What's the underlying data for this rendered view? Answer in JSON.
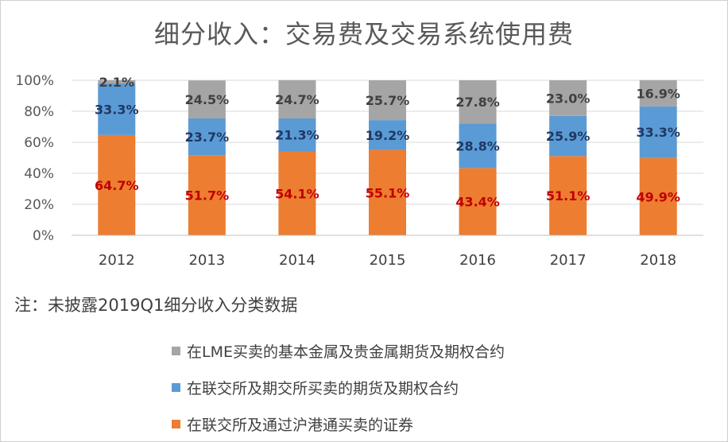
{
  "title": "细分收入：交易费及交易系统使用费",
  "note": "注：未披露2019Q1细分收入分类数据",
  "colors": {
    "orange": "#ED7D31",
    "blue": "#5B9BD5",
    "gray": "#A5A5A5",
    "orange_label": "#C00000",
    "blue_label": "#1F3864",
    "gray_label": "#404040"
  },
  "chart_data": {
    "type": "bar",
    "stacked": true,
    "percent": true,
    "categories": [
      "2012",
      "2013",
      "2014",
      "2015",
      "2016",
      "2017",
      "2018"
    ],
    "y_ticks": [
      "0%",
      "20%",
      "40%",
      "60%",
      "80%",
      "100%"
    ],
    "ylim": [
      0,
      100
    ],
    "grid": true,
    "legend_position": "bottom",
    "series": [
      {
        "name": "在联交所及通过沪港通买卖的证券",
        "color": "#ED7D31",
        "values": [
          64.7,
          51.7,
          54.1,
          55.1,
          43.4,
          51.1,
          49.9
        ],
        "labels": [
          "64.7%",
          "51.7%",
          "54.1%",
          "55.1%",
          "43.4%",
          "51.1%",
          "49.9%"
        ]
      },
      {
        "name": "在联交所及期交所买卖的期货及期权合约",
        "color": "#5B9BD5",
        "values": [
          33.3,
          23.7,
          21.3,
          19.2,
          28.8,
          25.9,
          33.3
        ],
        "labels": [
          "33.3%",
          "23.7%",
          "21.3%",
          "19.2%",
          "28.8%",
          "25.9%",
          "33.3%"
        ]
      },
      {
        "name": "在LME买卖的基本金属及贵金属期货及期权合约",
        "color": "#A5A5A5",
        "values": [
          2.1,
          24.5,
          24.7,
          25.7,
          27.8,
          23.0,
          16.9
        ],
        "labels": [
          "2.1%",
          "24.5%",
          "24.7%",
          "25.7%",
          "27.8%",
          "23.0%",
          "16.9%"
        ]
      }
    ]
  },
  "legend": [
    {
      "label": "在LME买卖的基本金属及贵金属期货及期权合约",
      "color": "#A5A5A5"
    },
    {
      "label": "在联交所及期交所买卖的期货及期权合约",
      "color": "#5B9BD5"
    },
    {
      "label": "在联交所及通过沪港通买卖的证券",
      "color": "#ED7D31"
    }
  ]
}
